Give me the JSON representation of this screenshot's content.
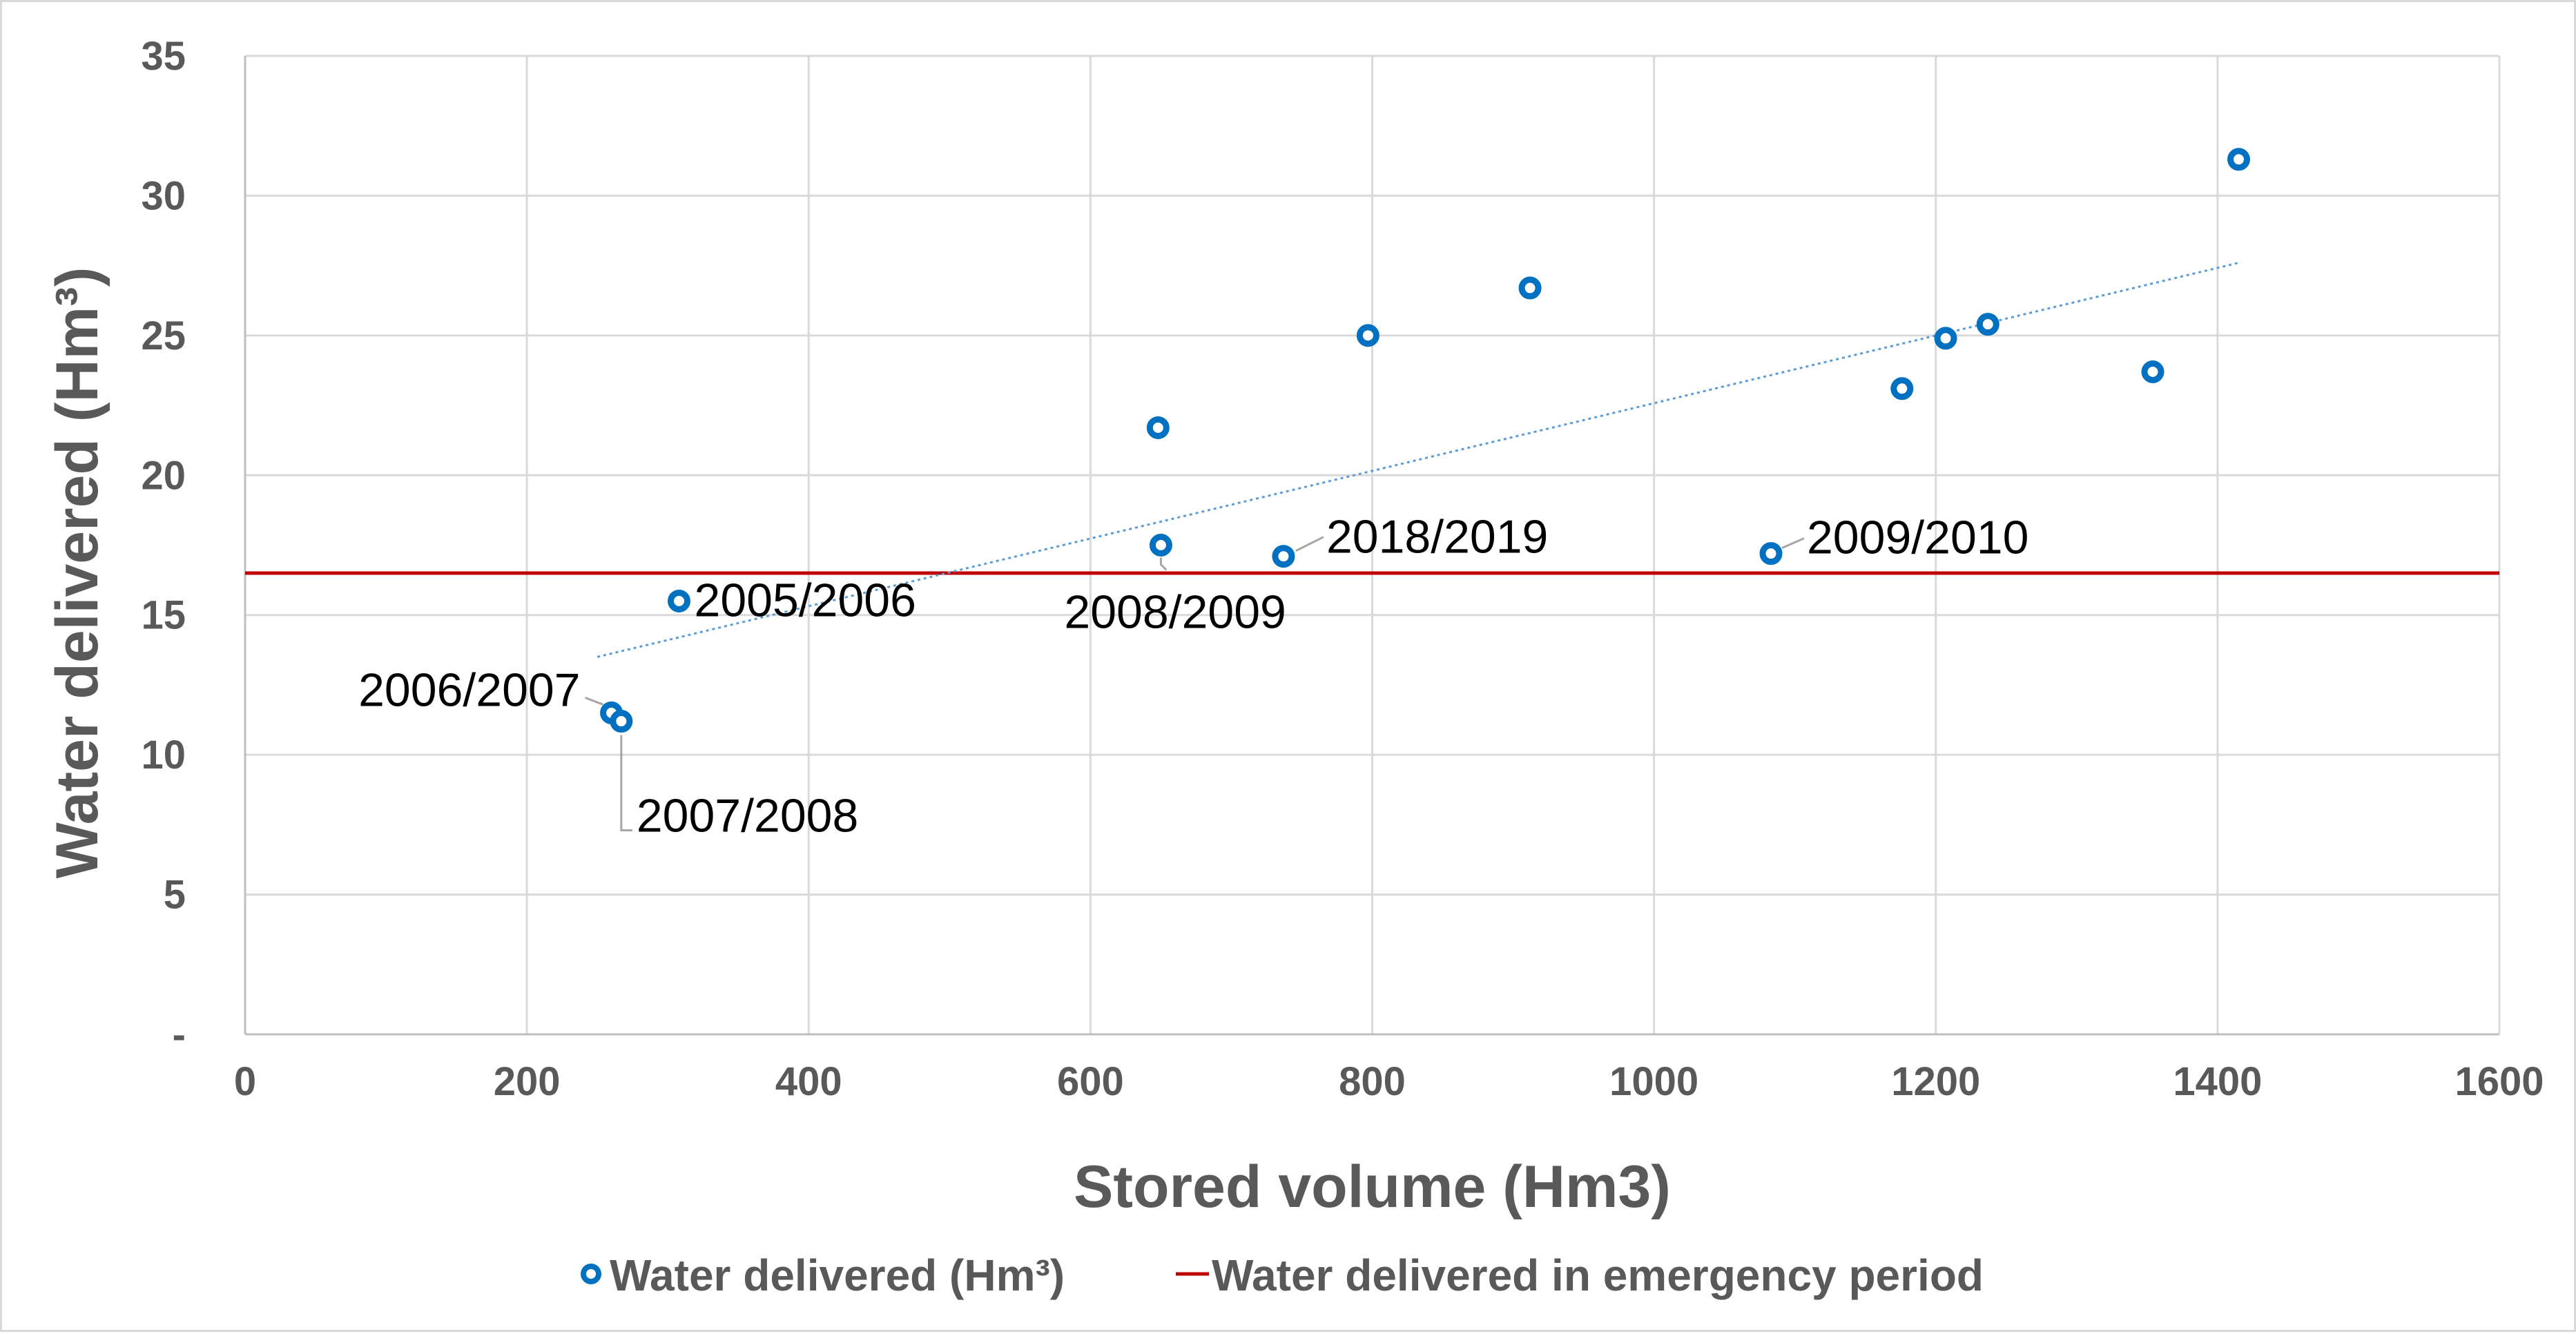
{
  "chart_data": {
    "type": "scatter",
    "title": "",
    "xlabel": "Stored volume (Hm3)",
    "ylabel": "Water delivered (Hm³)",
    "xlim": [
      0,
      1600
    ],
    "ylim": [
      0,
      35
    ],
    "xticks": [
      0,
      200,
      400,
      600,
      800,
      1000,
      1200,
      1400,
      1600
    ],
    "xtick_labels": [
      "0",
      "200",
      "400",
      "600",
      "800",
      "1000",
      "1200",
      "1400",
      "1600"
    ],
    "yticks": [
      0,
      5,
      10,
      15,
      20,
      25,
      30,
      35
    ],
    "ytick_labels": [
      "-",
      "5",
      "10",
      "15",
      "20",
      "25",
      "30",
      "35"
    ],
    "grid": true,
    "legend_position": "bottom",
    "series": [
      {
        "name": "Water delivered (Hm³)",
        "kind": "scatter",
        "color": "#0070c0",
        "points": [
          {
            "x": 260,
            "y": 11.5,
            "label": "2006/2007"
          },
          {
            "x": 267,
            "y": 11.2,
            "label": "2007/2008"
          },
          {
            "x": 308,
            "y": 15.5,
            "label": "2005/2006"
          },
          {
            "x": 648,
            "y": 21.7,
            "label": ""
          },
          {
            "x": 650,
            "y": 17.5,
            "label": "2008/2009"
          },
          {
            "x": 737,
            "y": 17.1,
            "label": "2018/2019"
          },
          {
            "x": 797,
            "y": 25.0,
            "label": ""
          },
          {
            "x": 912,
            "y": 26.7,
            "label": ""
          },
          {
            "x": 1083,
            "y": 17.2,
            "label": "2009/2010"
          },
          {
            "x": 1176,
            "y": 23.1,
            "label": ""
          },
          {
            "x": 1207,
            "y": 24.9,
            "label": ""
          },
          {
            "x": 1237,
            "y": 25.4,
            "label": ""
          },
          {
            "x": 1354,
            "y": 23.7,
            "label": ""
          },
          {
            "x": 1415,
            "y": 31.3,
            "label": ""
          }
        ]
      },
      {
        "name": "Water delivered in emergency period",
        "kind": "hline",
        "color": "#c00000",
        "y": 16.5
      }
    ],
    "trendline": {
      "kind": "linear",
      "color": "#5b9bd5",
      "x": [
        250,
        1415
      ],
      "y": [
        13.5,
        27.6
      ]
    }
  }
}
